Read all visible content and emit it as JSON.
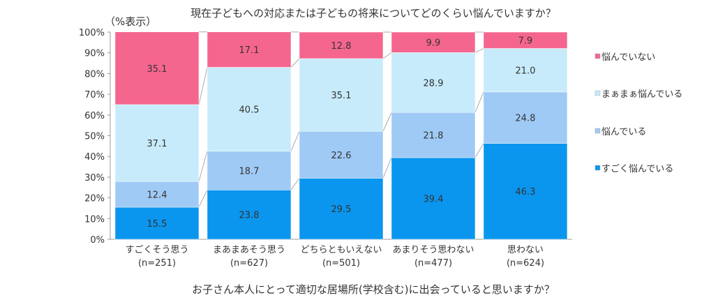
{
  "chart_data": {
    "type": "bar",
    "stacked": true,
    "normalized": true,
    "title": "現在子どもへの対応または子どもの将来についてどのくらい悩んでいますか？",
    "unit_note": "（%表示）",
    "xlabel": "お子さん本人にとって適切な居場所(学校含む)に出会っていると思いますか？",
    "ylabel": "",
    "ylim": [
      0,
      100
    ],
    "yticks": [
      "0%",
      "10%",
      "20%",
      "30%",
      "40%",
      "50%",
      "60%",
      "70%",
      "80%",
      "90%",
      "100%"
    ],
    "categories": [
      {
        "label": "すごくそう思う",
        "n": "(n=251)"
      },
      {
        "label": "まあまあそう思う",
        "n": "(n=627)"
      },
      {
        "label": "どちらともいえない",
        "n": "(n=501)"
      },
      {
        "label": "あまりそう思わない",
        "n": "(n=477)"
      },
      {
        "label": "思わない",
        "n": "(n=624)"
      }
    ],
    "series": [
      {
        "name": "すごく悩んでいる",
        "color": "#0a96ee",
        "values": [
          15.5,
          23.8,
          29.5,
          39.4,
          46.3
        ]
      },
      {
        "name": "悩んでいる",
        "color": "#9fcaf6",
        "values": [
          12.4,
          18.7,
          22.6,
          21.8,
          24.8
        ]
      },
      {
        "name": "まぁまぁ悩んでいる",
        "color": "#c7ebfa",
        "values": [
          37.1,
          40.5,
          35.1,
          28.9,
          21.0
        ]
      },
      {
        "name": "悩んでいない",
        "color": "#f5668f",
        "values": [
          35.1,
          17.1,
          12.8,
          9.9,
          7.9
        ]
      }
    ],
    "legend_placement": "right",
    "series_lines": true,
    "grid": false
  }
}
